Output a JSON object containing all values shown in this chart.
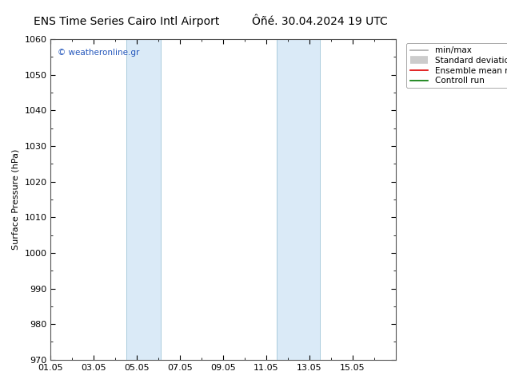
{
  "title_left": "ENS Time Series Cairo Intl Airport",
  "title_right": "Ôñé. 30.04.2024 19 UTC",
  "ylabel": "Surface Pressure (hPa)",
  "ylim": [
    970,
    1060
  ],
  "yticks": [
    970,
    980,
    990,
    1000,
    1010,
    1020,
    1030,
    1040,
    1050,
    1060
  ],
  "xlim_start": 0,
  "xlim_end": 16,
  "xtick_labels": [
    "01.05",
    "03.05",
    "05.05",
    "07.05",
    "09.05",
    "11.05",
    "13.05",
    "15.05"
  ],
  "xtick_positions": [
    0,
    2,
    4,
    6,
    8,
    10,
    12,
    14
  ],
  "shaded_bands": [
    {
      "xmin": 3.5,
      "xmax": 5.1
    },
    {
      "xmin": 10.5,
      "xmax": 12.5
    }
  ],
  "band_color": "#daeaf7",
  "band_edge_color": "#aaccdd",
  "copyright_text": "© weatheronline.gr",
  "legend_entries": [
    {
      "label": "min/max",
      "color": "#aaaaaa",
      "lw": 1.0
    },
    {
      "label": "Standard deviation",
      "color": "#cccccc",
      "lw": 8
    },
    {
      "label": "Ensemble mean run",
      "color": "#dd0000",
      "lw": 1.2
    },
    {
      "label": "Controll run",
      "color": "#007700",
      "lw": 1.2
    }
  ],
  "bg_color": "#ffffff",
  "title_fontsize": 10,
  "axis_fontsize": 8,
  "tick_fontsize": 8
}
